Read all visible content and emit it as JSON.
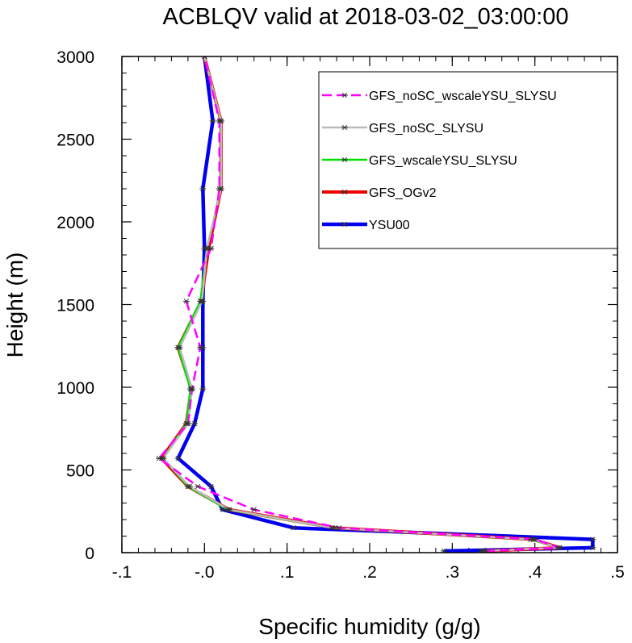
{
  "chart_data": {
    "type": "line",
    "title": "ACBLQV valid at 2018-03-02_03:00:00",
    "xlabel": "Specific humidity (g/g)",
    "ylabel": "Height (m)",
    "xlim": [
      -0.1,
      0.5
    ],
    "ylim": [
      0,
      3000
    ],
    "xticks": [
      -0.1,
      0.0,
      0.1,
      0.2,
      0.3,
      0.4,
      0.5
    ],
    "xtick_labels": [
      "-.1",
      "-.0",
      ".1",
      ".2",
      ".3",
      ".4",
      ".5"
    ],
    "yticks": [
      0,
      500,
      1000,
      1500,
      2000,
      2500,
      3000
    ],
    "ytick_labels": [
      "0",
      "500",
      "1000",
      "1500",
      "2000",
      "2500",
      "3000"
    ],
    "grid": false,
    "legend_position": "top-right",
    "heights": [
      10,
      30,
      80,
      150,
      260,
      400,
      570,
      780,
      990,
      1240,
      1520,
      1840,
      2200,
      2610,
      3000
    ],
    "series": [
      {
        "name": "GFS_noSC_wscaleYSU_SLYSU",
        "color": "#ff00ff",
        "style": "dashed",
        "width": 2.5,
        "values": [
          0.34,
          0.43,
          0.4,
          0.163,
          0.06,
          -0.008,
          -0.055,
          -0.02,
          -0.015,
          -0.005,
          -0.022,
          0.008,
          0.018,
          0.018,
          0.0
        ]
      },
      {
        "name": "GFS_noSC_SLYSU",
        "color": "#bbbbbb",
        "style": "solid",
        "width": 2.5,
        "values": [
          0.337,
          0.428,
          0.398,
          0.155,
          0.03,
          -0.018,
          -0.05,
          -0.02,
          -0.015,
          -0.03,
          -0.003,
          0.003,
          0.02,
          0.02,
          0.0
        ]
      },
      {
        "name": "GFS_wscaleYSU_SLYSU",
        "color": "#00e000",
        "style": "solid",
        "width": 2.5,
        "values": [
          0.335,
          0.43,
          0.395,
          0.155,
          0.028,
          -0.02,
          -0.05,
          -0.022,
          -0.017,
          -0.032,
          -0.005,
          0.003,
          0.02,
          0.02,
          0.0
        ]
      },
      {
        "name": "GFS_OGv2",
        "color": "#ee0000",
        "style": "solid",
        "width": 4,
        "values": [
          0.34,
          0.43,
          0.398,
          0.158,
          0.03,
          -0.02,
          -0.052,
          -0.022,
          -0.016,
          -0.032,
          -0.004,
          0.005,
          0.02,
          0.02,
          0.0
        ]
      },
      {
        "name": "YSU00",
        "color": "#0000ee",
        "style": "solid",
        "width": 4.5,
        "values": [
          0.29,
          0.47,
          0.47,
          0.108,
          0.022,
          0.008,
          -0.032,
          -0.012,
          -0.002,
          -0.002,
          -0.002,
          0.0,
          -0.002,
          0.01,
          0.0
        ]
      }
    ]
  }
}
